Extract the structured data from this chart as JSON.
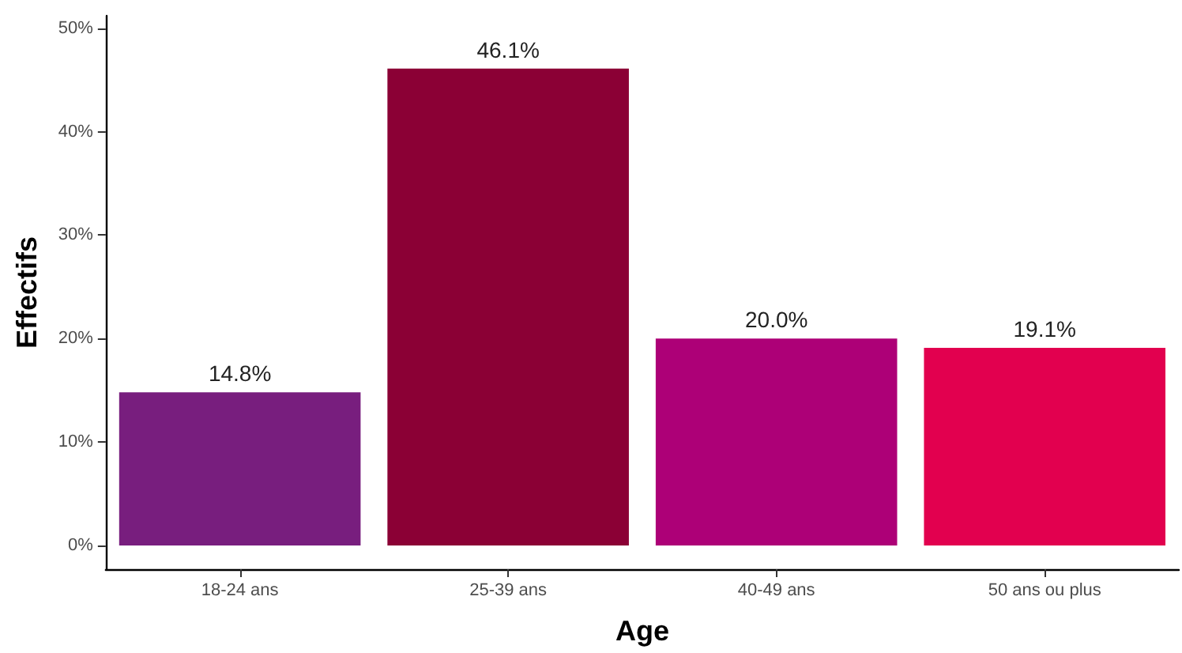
{
  "chart_data": {
    "type": "bar",
    "xlabel": "Age",
    "ylabel": "Effectifs",
    "categories": [
      "18-24 ans",
      "25-39 ans",
      "40-49 ans",
      "50 ans ou plus"
    ],
    "values": [
      14.8,
      46.1,
      20.0,
      19.1
    ],
    "colors": [
      "#781e7e",
      "#8b0035",
      "#ad0077",
      "#e2004f"
    ],
    "value_labels": [
      "14.8%",
      "46.1%",
      "20.0%",
      "19.1%"
    ],
    "ylim": [
      -2.3,
      51.2
    ],
    "yticks": [
      {
        "value": 0,
        "label": "0%"
      },
      {
        "value": 10,
        "label": "10%"
      },
      {
        "value": 20,
        "label": "20%"
      },
      {
        "value": 30,
        "label": "30%"
      },
      {
        "value": 40,
        "label": "40%"
      },
      {
        "value": 50,
        "label": "50%"
      }
    ],
    "tick_labels": "xy"
  }
}
